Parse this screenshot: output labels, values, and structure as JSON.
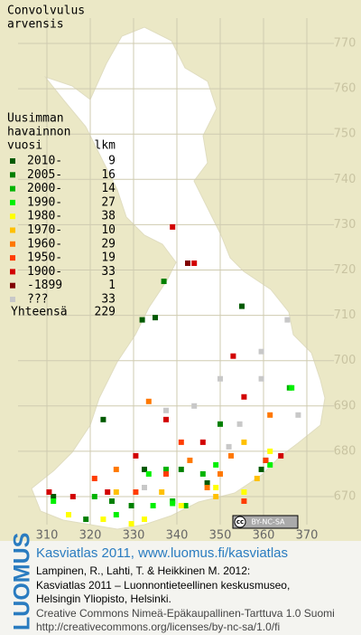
{
  "title_lines": [
    "Convolvulus",
    "arvensis"
  ],
  "legend": {
    "heading": [
      "Uusimman",
      "havainnon",
      "vuosi"
    ],
    "count_heading": "lkm",
    "rows": [
      {
        "label": "2010-",
        "count": 9,
        "color": "#005a00",
        "squares": [
          [
            332,
            709
          ],
          [
            335,
            709.5
          ],
          [
            355,
            712
          ],
          [
            323,
            687
          ],
          [
            347,
            673
          ],
          [
            332.5,
            676
          ],
          [
            359.5,
            676
          ],
          [
            311.5,
            670
          ]
        ]
      },
      {
        "label": "2005-",
        "count": 16,
        "color": "#008000",
        "squares": [
          [
            337,
            717.5
          ],
          [
            350,
            686
          ],
          [
            341,
            676
          ],
          [
            360.5,
            678
          ],
          [
            325,
            669
          ],
          [
            319,
            665
          ],
          [
            329.5,
            668
          ]
        ]
      },
      {
        "label": "2000-",
        "count": 14,
        "color": "#00b400",
        "squares": [
          [
            346,
            675
          ],
          [
            337.5,
            676
          ],
          [
            339,
            669
          ],
          [
            321,
            670
          ],
          [
            366,
            694
          ],
          [
            342,
            668
          ]
        ]
      },
      {
        "label": "1990-",
        "count": 27,
        "color": "#00f000",
        "squares": [
          [
            339,
            668.5
          ],
          [
            366.5,
            694
          ],
          [
            311.5,
            669
          ],
          [
            326,
            666
          ],
          [
            333.5,
            675
          ],
          [
            349,
            677
          ],
          [
            334.5,
            668
          ],
          [
            361.5,
            677
          ]
        ]
      },
      {
        "label": "1980-",
        "count": 38,
        "color": "#ffff00",
        "squares": [
          [
            323,
            665
          ],
          [
            329.5,
            664
          ],
          [
            332.5,
            665
          ],
          [
            341,
            668
          ],
          [
            355.5,
            671
          ],
          [
            361.5,
            680
          ],
          [
            315,
            666
          ],
          [
            349,
            672
          ]
        ]
      },
      {
        "label": "1970-",
        "count": 10,
        "color": "#ffc000",
        "squares": [
          [
            336.5,
            671
          ],
          [
            349,
            670
          ],
          [
            326,
            671
          ],
          [
            358.5,
            674
          ],
          [
            355.5,
            682
          ]
        ]
      },
      {
        "label": "1960-",
        "count": 29,
        "color": "#ff7800",
        "squares": [
          [
            347,
            672
          ],
          [
            361.5,
            688
          ],
          [
            326,
            676
          ],
          [
            343,
            678
          ],
          [
            352.5,
            679
          ],
          [
            333.5,
            691
          ],
          [
            350,
            675
          ]
        ]
      },
      {
        "label": "1950-",
        "count": 19,
        "color": "#ff3c00",
        "squares": [
          [
            355.5,
            669
          ],
          [
            321,
            674
          ],
          [
            337.5,
            675
          ],
          [
            360.5,
            678
          ],
          [
            341,
            682
          ],
          [
            330.5,
            671
          ]
        ]
      },
      {
        "label": "1900-",
        "count": 33,
        "color": "#d20000",
        "squares": [
          [
            339,
            729.5
          ],
          [
            344,
            721.5
          ],
          [
            310.5,
            671
          ],
          [
            316,
            670
          ],
          [
            330.5,
            679
          ],
          [
            353,
            701
          ],
          [
            355.5,
            692
          ],
          [
            337.5,
            687
          ],
          [
            324,
            671
          ],
          [
            346,
            682
          ],
          [
            364,
            679
          ]
        ]
      },
      {
        "label": "-1899",
        "count": 1,
        "color": "#800000",
        "squares": [
          [
            342.5,
            721.5
          ]
        ]
      },
      {
        "label": "???",
        "count": 33,
        "color": "#c8c8c8",
        "squares": [
          [
            365.5,
            709
          ],
          [
            359.5,
            696
          ],
          [
            354.5,
            686
          ],
          [
            350,
            696
          ],
          [
            368,
            688
          ],
          [
            344,
            690
          ],
          [
            337.5,
            689
          ],
          [
            352,
            681
          ],
          [
            359.5,
            702
          ],
          [
            332.5,
            672
          ]
        ]
      }
    ],
    "total_label": "Yhteensä",
    "total": 229
  },
  "xticks": [
    310,
    320,
    330,
    340,
    350,
    360,
    370
  ],
  "yticks": [
    670,
    680,
    690,
    700,
    710,
    720,
    730,
    740,
    750,
    760,
    770
  ],
  "badge": {
    "cc": "cc",
    "text": "BY-NC-SA"
  },
  "footer": {
    "logo": "LUOMUS",
    "headline": "Kasviatlas 2011, www.luomus.fi/kasviatlas",
    "citation": [
      "Lampinen, R., Lahti, T. & Heikkinen M. 2012:",
      "Kasviatlas 2011 – Luonnontieteellinen keskusmuseo,",
      "Helsingin Yliopisto, Helsinki."
    ],
    "license": [
      "Creative Commons Nimeä-Epäkaupallinen-Tarttuva 1.0 Suomi",
      "http://creativecommons.org/licenses/by-nc-sa/1.0/fi"
    ]
  }
}
